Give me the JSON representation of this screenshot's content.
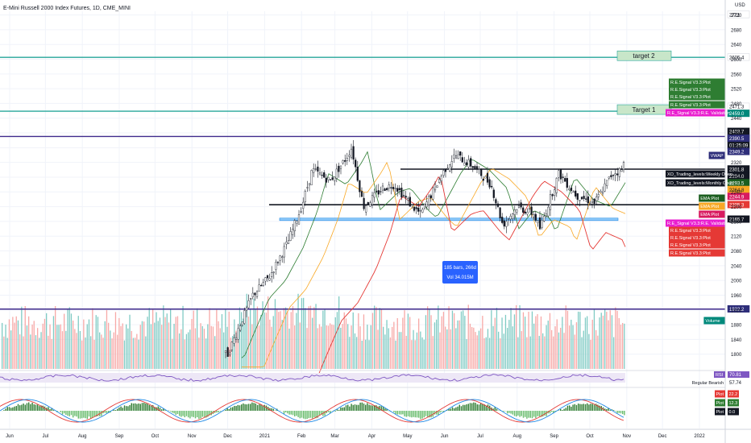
{
  "header": {
    "symbol_title": "E-Mini Russell 2000 Index Futures, 1D, CME_MINI",
    "currency": "USD"
  },
  "chart_data": {
    "type": "candlestick",
    "title": "E-Mini Russell 2000 Index Futures, 1D, CME_MINI",
    "ylim": [
      1760,
      2730
    ],
    "price_ticks": [
      1800,
      1840,
      1880,
      1920,
      1960,
      2000,
      2040,
      2080,
      2120,
      2160,
      2200,
      2240,
      2280,
      2320,
      2360,
      2400,
      2440,
      2480,
      2520,
      2560,
      2600,
      2640,
      2680,
      2720
    ],
    "x_labels": [
      "Jun",
      "Jul",
      "Aug",
      "Sep",
      "Oct",
      "Nov",
      "Dec",
      "2021",
      "Feb",
      "Mar",
      "Apr",
      "May",
      "Jun",
      "Jul",
      "Aug",
      "Sep",
      "Oct",
      "Nov",
      "Dec",
      "2022"
    ],
    "close_path": [
      [
        "2020-12-01",
        1800
      ],
      [
        "2020-12-10",
        1870
      ],
      [
        "2020-12-22",
        1960
      ],
      [
        "2021-01-05",
        2010
      ],
      [
        "2021-01-20",
        2100
      ],
      [
        "2021-02-01",
        2200
      ],
      [
        "2021-02-10",
        2300
      ],
      [
        "2021-02-25",
        2270
      ],
      [
        "2021-03-10",
        2330
      ],
      [
        "2021-03-15",
        2360
      ],
      [
        "2021-03-25",
        2200
      ],
      [
        "2021-04-10",
        2250
      ],
      [
        "2021-04-20",
        2260
      ],
      [
        "2021-05-05",
        2200
      ],
      [
        "2021-05-12",
        2180
      ],
      [
        "2021-06-01",
        2300
      ],
      [
        "2021-06-10",
        2340
      ],
      [
        "2021-06-25",
        2310
      ],
      [
        "2021-07-10",
        2260
      ],
      [
        "2021-07-20",
        2150
      ],
      [
        "2021-08-01",
        2200
      ],
      [
        "2021-08-15",
        2180
      ],
      [
        "2021-08-20",
        2140
      ],
      [
        "2021-09-05",
        2290
      ],
      [
        "2021-09-20",
        2230
      ],
      [
        "2021-10-05",
        2210
      ],
      [
        "2021-10-20",
        2290
      ],
      [
        "2021-10-28",
        2300
      ],
      [
        "2021-11-01",
        2345
      ],
      [
        "2021-11-05",
        2403
      ]
    ],
    "horizontal_levels": [
      {
        "name": "Target 1",
        "value": 2459
      },
      {
        "name": "target 2",
        "value": 2605
      }
    ],
    "range_box": {
      "bars": "185 bars, 266d",
      "volume": "Vol 34.015M"
    },
    "price_labels": [
      {
        "text": "2721",
        "value": 2721,
        "color": "#ffffff",
        "fg": "#131722"
      },
      {
        "text": "2605.4",
        "value": 2605.4,
        "color": "#ffffff",
        "fg": "#131722"
      },
      {
        "text": "2471.3",
        "value": 2471.3,
        "color": "#ffffff",
        "fg": "#131722"
      },
      {
        "text": "2459.0",
        "value": 2459.0,
        "color": "#00897b",
        "fg": "#ffffff"
      },
      {
        "text": "2403.7",
        "value": 2403.7,
        "color": "#131722",
        "fg": "#ffffff",
        "extra": [
          "+78.81%",
          "01:25:09"
        ]
      },
      {
        "text": "2390.5",
        "value": 2390.5,
        "color": "#2e2e7a",
        "fg": "#ffffff"
      },
      {
        "text": "2349.2",
        "value": 2349.2,
        "color": "#2e2e7a",
        "fg": "#ffffff"
      },
      {
        "text": "2301.8",
        "value": 2301.8,
        "color": "#131722",
        "fg": "#ffffff"
      },
      {
        "text": "2294.0",
        "value": 2294.0,
        "color": "#131722",
        "fg": "#ffffff"
      },
      {
        "text": "2293.5",
        "value": 2293.5,
        "color": "#1b5e20",
        "fg": "#ffffff"
      },
      {
        "text": "2264.8",
        "value": 2264.8,
        "color": "#f9a825",
        "fg": "#131722"
      },
      {
        "text": "2244.9",
        "value": 2244.9,
        "color": "#d81b60",
        "fg": "#ffffff"
      },
      {
        "text": "2205.3",
        "value": 2205.3,
        "color": "#e53935",
        "fg": "#ffffff"
      },
      {
        "text": "2165.7",
        "value": 2165.7,
        "color": "#131722",
        "fg": "#ffffff"
      },
      {
        "text": "1922.2",
        "value": 1922.2,
        "color": "#2e2e7a",
        "fg": "#ffffff"
      }
    ],
    "indicator_tags": [
      {
        "text": "R.E.Signal V3.3:Plot",
        "value": "2459.0",
        "color": "#2e7d32"
      },
      {
        "text": "R.E.Signal V3.3:Plot",
        "value": "2459.0",
        "color": "#2e7d32"
      },
      {
        "text": "R.E.Signal V3.3:Plot",
        "value": "2459.0",
        "color": "#2e7d32"
      },
      {
        "text": "R.E.Signal V3.3:Plot",
        "value": "2459.0",
        "color": "#2e7d32"
      },
      {
        "text": "R.E_Signal V3.3:R.E. Validation",
        "value": "2459.0",
        "color": "#e91ecf"
      },
      {
        "text": "VWAP",
        "value": "2390.5",
        "color": "#2e2e7a"
      },
      {
        "text": "XO_Trading_levels:Weekly Open",
        "value": "2301.8",
        "color": "#131722"
      },
      {
        "text": "XO_Trading_levels:Monthly Open",
        "value": "2301.8",
        "color": "#131722"
      },
      {
        "text": "EMA:Plot",
        "value": "2293.5",
        "color": "#1b5e20"
      },
      {
        "text": "EMA:Plot",
        "value": "2264.8",
        "color": "#f9a825"
      },
      {
        "text": "EMA:Plot",
        "value": "2244.9",
        "color": "#d81b60"
      },
      {
        "text": "R.E_Signal V3.3:R.E. Validation",
        "value": "2205.3",
        "color": "#e91ecf"
      },
      {
        "text": "R.E.Signal V3.3:Plot",
        "value": "2205.3",
        "color": "#e53935"
      },
      {
        "text": "R.E.Signal V3.3:Plot",
        "value": "2205.3",
        "color": "#e53935"
      },
      {
        "text": "R.E.Signal V3.3:Plot",
        "value": "2205.3",
        "color": "#e53935"
      },
      {
        "text": "R.E.Signal V3.3:Plot",
        "value": "2205.3",
        "color": "#e53935"
      },
      {
        "text": "Volume",
        "value": "191.246K",
        "color": "#00897b"
      }
    ],
    "rsi_panel": {
      "name": "RSI",
      "value": "70.81",
      "bearish_label": "Regular Bearish",
      "bearish_value": "57.74"
    },
    "macd_panel": {
      "tags": [
        {
          "text": "Plot",
          "value": "22.2",
          "color": "#e53935"
        },
        {
          "text": "Plot",
          "value": "12.3",
          "color": "#2e7d32"
        },
        {
          "text": "Plot",
          "value": "0.0",
          "color": "#131722"
        }
      ]
    }
  }
}
